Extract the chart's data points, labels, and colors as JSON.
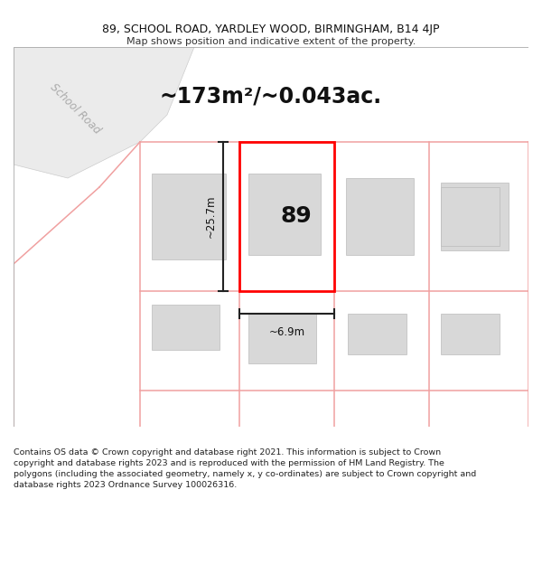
{
  "title_line1": "89, SCHOOL ROAD, YARDLEY WOOD, BIRMINGHAM, B14 4JP",
  "title_line2": "Map shows position and indicative extent of the property.",
  "area_text": "~173m²/~0.043ac.",
  "number_label": "89",
  "dim_width": "~6.9m",
  "dim_height": "~25.7m",
  "road_label": "School Road",
  "footer_text": "Contains OS data © Crown copyright and database right 2021. This information is subject to Crown copyright and database rights 2023 and is reproduced with the permission of HM Land Registry. The polygons (including the associated geometry, namely x, y co-ordinates) are subject to Crown copyright and database rights 2023 Ordnance Survey 100026316.",
  "bg_color": "#ffffff",
  "plot_border_color": "#ff0000",
  "cadastral_color": "#f0a0a0",
  "building_fill": "#d8d8d8",
  "building_edge": "#bbbbbb",
  "road_fill": "#ebebeb",
  "road_edge": "#cccccc",
  "road_label_color": "#aaaaaa",
  "dim_line_color": "#222222",
  "title_fontsize": 9.0,
  "subtitle_fontsize": 8.0,
  "area_fontsize": 17,
  "number_fontsize": 18,
  "dim_fontsize": 8.5,
  "footer_fontsize": 6.8
}
